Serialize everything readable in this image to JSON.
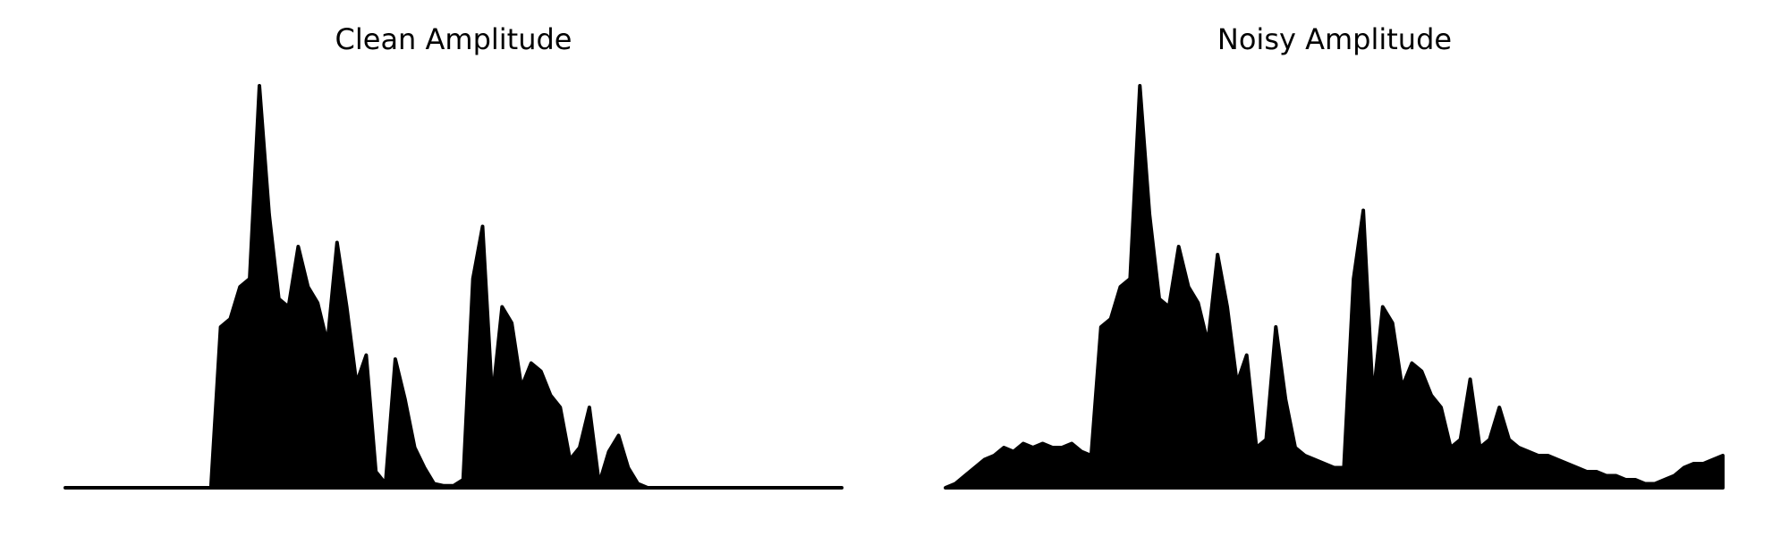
{
  "chart_data": [
    {
      "type": "area",
      "title": "Clean Amplitude",
      "color": "#000000",
      "ylim": [
        0,
        1
      ],
      "values": [
        0,
        0,
        0,
        0,
        0,
        0,
        0,
        0,
        0,
        0,
        0,
        0,
        0,
        0,
        0,
        0,
        0.4,
        0.42,
        0.5,
        0.52,
        1.0,
        0.68,
        0.47,
        0.45,
        0.6,
        0.5,
        0.46,
        0.36,
        0.61,
        0.45,
        0.26,
        0.33,
        0.04,
        0.01,
        0.32,
        0.22,
        0.1,
        0.05,
        0.01,
        0.005,
        0.005,
        0.02,
        0.52,
        0.65,
        0.22,
        0.45,
        0.41,
        0.25,
        0.31,
        0.29,
        0.23,
        0.2,
        0.07,
        0.1,
        0.2,
        0.01,
        0.09,
        0.13,
        0.05,
        0.01,
        0,
        0,
        0,
        0,
        0,
        0,
        0,
        0,
        0,
        0,
        0,
        0,
        0,
        0,
        0,
        0,
        0,
        0,
        0,
        0,
        0
      ]
    },
    {
      "type": "area",
      "title": "Noisy Amplitude",
      "color": "#000000",
      "ylim": [
        0,
        1
      ],
      "values": [
        0,
        0.01,
        0.03,
        0.05,
        0.07,
        0.08,
        0.1,
        0.09,
        0.11,
        0.1,
        0.11,
        0.1,
        0.1,
        0.11,
        0.09,
        0.08,
        0.4,
        0.42,
        0.5,
        0.52,
        1.0,
        0.68,
        0.47,
        0.45,
        0.6,
        0.5,
        0.46,
        0.36,
        0.58,
        0.45,
        0.26,
        0.33,
        0.1,
        0.12,
        0.4,
        0.22,
        0.1,
        0.08,
        0.07,
        0.06,
        0.05,
        0.05,
        0.52,
        0.69,
        0.22,
        0.45,
        0.41,
        0.25,
        0.31,
        0.29,
        0.23,
        0.2,
        0.1,
        0.12,
        0.27,
        0.1,
        0.12,
        0.2,
        0.12,
        0.1,
        0.09,
        0.08,
        0.08,
        0.07,
        0.06,
        0.05,
        0.04,
        0.04,
        0.03,
        0.03,
        0.02,
        0.02,
        0.01,
        0.01,
        0.02,
        0.03,
        0.05,
        0.06,
        0.06,
        0.07,
        0.08
      ]
    }
  ]
}
